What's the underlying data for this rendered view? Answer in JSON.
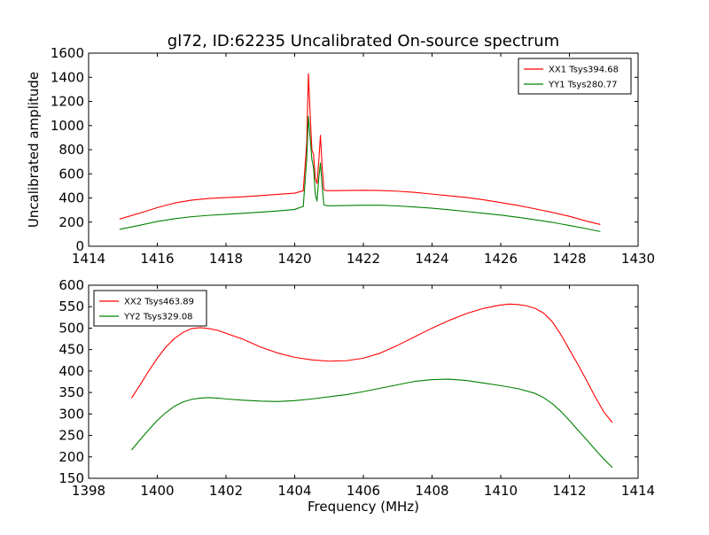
{
  "chart_data": [
    {
      "type": "line",
      "title": "gl72, ID:62235 Uncalibrated On-source spectrum",
      "xlabel": "",
      "ylabel": "Uncalibrated amplitude",
      "xlim": [
        1414,
        1430
      ],
      "ylim": [
        0,
        1600
      ],
      "xticks": [
        1414,
        1416,
        1418,
        1420,
        1422,
        1424,
        1426,
        1428,
        1430
      ],
      "yticks": [
        0,
        200,
        400,
        600,
        800,
        1000,
        1200,
        1400,
        1600
      ],
      "legend": "top-right",
      "grid": false,
      "series": [
        {
          "name": "XX1 Tsys394.68",
          "color": "#ff0000",
          "x": [
            1414.9,
            1415.5,
            1416.0,
            1416.5,
            1417.0,
            1417.5,
            1418.0,
            1418.5,
            1419.0,
            1419.5,
            1420.0,
            1420.25,
            1420.35,
            1420.4,
            1420.45,
            1420.5,
            1420.55,
            1420.6,
            1420.65,
            1420.7,
            1420.75,
            1420.8,
            1420.85,
            1420.9,
            1421.0,
            1421.5,
            1422.0,
            1422.5,
            1423.0,
            1423.5,
            1424.0,
            1424.5,
            1425.0,
            1425.5,
            1426.0,
            1426.5,
            1427.0,
            1427.5,
            1428.0,
            1428.5,
            1428.9
          ],
          "y": [
            225,
            275,
            320,
            358,
            382,
            396,
            403,
            410,
            420,
            430,
            440,
            460,
            850,
            1430,
            1100,
            800,
            760,
            560,
            520,
            700,
            920,
            660,
            470,
            462,
            460,
            462,
            464,
            462,
            456,
            446,
            432,
            418,
            404,
            385,
            362,
            338,
            310,
            280,
            248,
            208,
            180
          ]
        },
        {
          "name": "YY1 Tsys280.77",
          "color": "#008000",
          "x": [
            1414.9,
            1415.5,
            1416.0,
            1416.5,
            1417.0,
            1417.5,
            1418.0,
            1418.5,
            1419.0,
            1419.5,
            1420.0,
            1420.25,
            1420.35,
            1420.4,
            1420.45,
            1420.5,
            1420.55,
            1420.6,
            1420.65,
            1420.7,
            1420.75,
            1420.8,
            1420.85,
            1420.9,
            1421.0,
            1421.5,
            1422.0,
            1422.5,
            1423.0,
            1423.5,
            1424.0,
            1424.5,
            1425.0,
            1425.5,
            1426.0,
            1426.5,
            1427.0,
            1427.5,
            1428.0,
            1428.5,
            1428.9
          ],
          "y": [
            140,
            175,
            205,
            228,
            245,
            256,
            265,
            273,
            282,
            292,
            305,
            330,
            720,
            1075,
            900,
            720,
            650,
            430,
            375,
            560,
            690,
            500,
            345,
            337,
            335,
            337,
            340,
            340,
            334,
            325,
            315,
            302,
            288,
            273,
            258,
            240,
            220,
            198,
            172,
            145,
            122
          ]
        }
      ]
    },
    {
      "type": "line",
      "title": "",
      "xlabel": "Frequency (MHz)",
      "ylabel": "",
      "xlim": [
        1398,
        1414
      ],
      "ylim": [
        150,
        600
      ],
      "xticks": [
        1398,
        1400,
        1402,
        1404,
        1406,
        1408,
        1410,
        1412,
        1414
      ],
      "yticks": [
        150,
        200,
        250,
        300,
        350,
        400,
        450,
        500,
        550,
        600
      ],
      "legend": "top-left",
      "grid": false,
      "series": [
        {
          "name": "XX2 Tsys463.89",
          "color": "#ff0000",
          "x": [
            1399.25,
            1399.5,
            1399.75,
            1400.0,
            1400.25,
            1400.5,
            1400.75,
            1401.0,
            1401.25,
            1401.5,
            1401.75,
            1402.0,
            1402.5,
            1403.0,
            1403.5,
            1404.0,
            1404.5,
            1405.0,
            1405.5,
            1406.0,
            1406.5,
            1407.0,
            1407.5,
            1408.0,
            1408.5,
            1409.0,
            1409.5,
            1410.0,
            1410.25,
            1410.5,
            1410.75,
            1411.0,
            1411.25,
            1411.5,
            1411.75,
            1412.0,
            1412.25,
            1412.5,
            1412.75,
            1413.0,
            1413.25
          ],
          "y": [
            337,
            368,
            400,
            430,
            456,
            476,
            490,
            499,
            501,
            499,
            495,
            488,
            474,
            456,
            442,
            432,
            426,
            423,
            424,
            430,
            442,
            460,
            480,
            500,
            518,
            534,
            546,
            554,
            556,
            555,
            552,
            546,
            535,
            515,
            485,
            450,
            415,
            378,
            340,
            305,
            280
          ]
        },
        {
          "name": "YY2 Tsys329.08",
          "color": "#008000",
          "x": [
            1399.25,
            1399.5,
            1399.75,
            1400.0,
            1400.25,
            1400.5,
            1400.75,
            1401.0,
            1401.25,
            1401.5,
            1401.75,
            1402.0,
            1402.5,
            1403.0,
            1403.5,
            1404.0,
            1404.5,
            1405.0,
            1405.5,
            1406.0,
            1406.5,
            1407.0,
            1407.5,
            1408.0,
            1408.5,
            1409.0,
            1409.5,
            1410.0,
            1410.5,
            1411.0,
            1411.25,
            1411.5,
            1411.75,
            1412.0,
            1412.25,
            1412.5,
            1412.75,
            1413.0,
            1413.25
          ],
          "y": [
            216,
            240,
            263,
            285,
            303,
            318,
            328,
            334,
            337,
            338,
            337,
            335,
            332,
            330,
            329,
            331,
            335,
            340,
            345,
            352,
            360,
            368,
            376,
            380,
            381,
            378,
            372,
            366,
            359,
            348,
            338,
            324,
            306,
            285,
            262,
            240,
            217,
            195,
            175
          ]
        }
      ]
    }
  ]
}
